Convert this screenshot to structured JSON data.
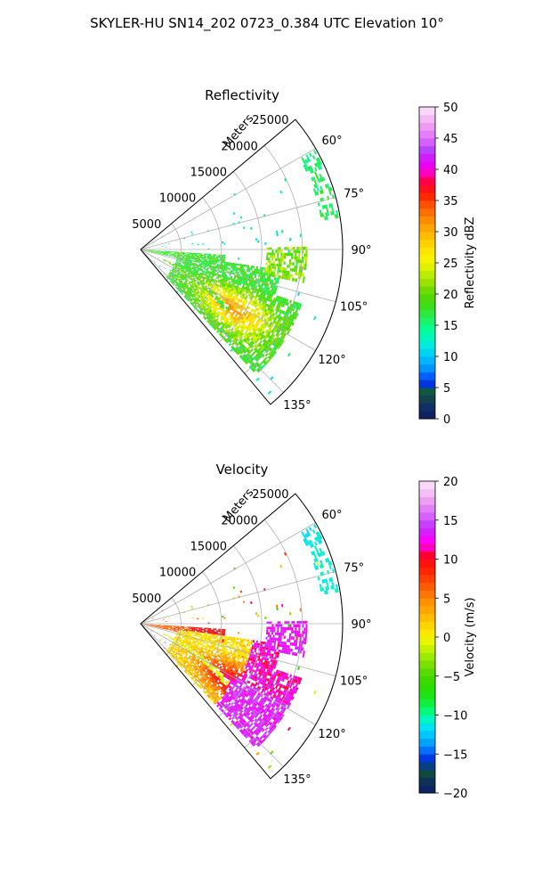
{
  "figure": {
    "suptitle": "SKYLER-HU  SN14_202  0723_0.384 UTC Elevation 10°"
  },
  "chart_data": [
    {
      "type": "heatmap",
      "title": "Reflectivity",
      "radial_label": "Meters",
      "r_ticks": [
        "5000",
        "10000",
        "15000",
        "20000",
        "25000"
      ],
      "r_tick_values": [
        5000,
        10000,
        15000,
        20000,
        25000
      ],
      "r_range": [
        0,
        25000
      ],
      "theta_ticks": [
        "60°",
        "75°",
        "90°",
        "105°",
        "120°",
        "135°"
      ],
      "theta_tick_values": [
        60,
        75,
        90,
        105,
        120,
        135
      ],
      "theta_range": [
        50,
        140
      ],
      "grid": true,
      "colorbar": {
        "label": "Reflectivity dBZ",
        "range": [
          0,
          50
        ],
        "ticks": [
          "0",
          "5",
          "10",
          "15",
          "20",
          "25",
          "30",
          "35",
          "40",
          "45",
          "50"
        ],
        "tick_values": [
          0,
          5,
          10,
          15,
          20,
          25,
          30,
          35,
          40,
          45,
          50
        ]
      }
    },
    {
      "type": "heatmap",
      "title": "Velocity",
      "radial_label": "Meters",
      "r_ticks": [
        "5000",
        "10000",
        "15000",
        "20000",
        "25000"
      ],
      "r_tick_values": [
        5000,
        10000,
        15000,
        20000,
        25000
      ],
      "r_range": [
        0,
        25000
      ],
      "theta_ticks": [
        "60°",
        "75°",
        "90°",
        "105°",
        "120°",
        "135°"
      ],
      "theta_tick_values": [
        60,
        75,
        90,
        105,
        120,
        135
      ],
      "theta_range": [
        50,
        140
      ],
      "grid": true,
      "colorbar": {
        "label": "Velocity (m/s)",
        "range": [
          -20,
          20
        ],
        "ticks": [
          "−20",
          "−15",
          "−10",
          "−5",
          "0",
          "5",
          "10",
          "15",
          "20"
        ],
        "tick_values": [
          -20,
          -15,
          -10,
          -5,
          0,
          5,
          10,
          15,
          20
        ]
      }
    }
  ]
}
